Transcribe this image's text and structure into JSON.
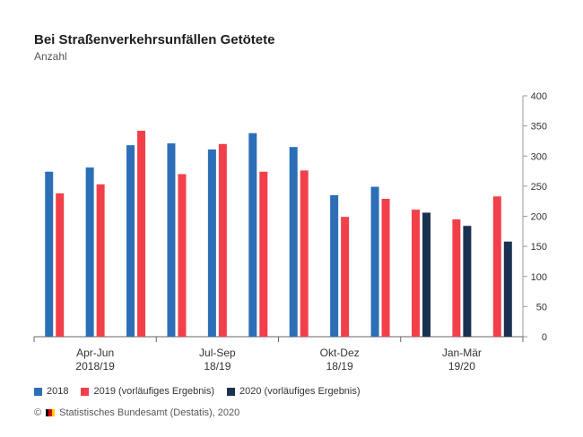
{
  "header": {
    "title": "Bei Straßenverkehrsunfällen Getötete",
    "subtitle": "Anzahl"
  },
  "source": {
    "copyright": "©",
    "text": "Statistisches Bundesamt (Destatis), 2020"
  },
  "colors": {
    "2018": "#2c6fb7",
    "2019": "#f2404b",
    "2020": "#1b3150",
    "axis": "#666666",
    "grid_tick": "#999999"
  },
  "chart_data": {
    "type": "bar",
    "y_axis_side": "right",
    "ylim": [
      0,
      400
    ],
    "yticks": [
      "0",
      "50",
      "100",
      "150",
      "200",
      "250",
      "300",
      "350",
      "400"
    ],
    "groups": [
      {
        "label_line1": "Apr-Jun",
        "label_line2": "2018/19",
        "months": [
          {
            "2018": 274,
            "2019": 238
          },
          {
            "2018": 281,
            "2019": 253
          },
          {
            "2018": 318,
            "2019": 342
          }
        ]
      },
      {
        "label_line1": "Jul-Sep",
        "label_line2": "18/19",
        "months": [
          {
            "2018": 321,
            "2019": 270
          },
          {
            "2018": 311,
            "2019": 320
          },
          {
            "2018": 338,
            "2019": 274
          }
        ]
      },
      {
        "label_line1": "Okt-Dez",
        "label_line2": "18/19",
        "months": [
          {
            "2018": 315,
            "2019": 276
          },
          {
            "2018": 235,
            "2019": 199
          },
          {
            "2018": 249,
            "2019": 229
          }
        ]
      },
      {
        "label_line1": "Jan-Mär",
        "label_line2": "19/20",
        "months": [
          {
            "2019": 211,
            "2020": 206
          },
          {
            "2019": 195,
            "2020": 184
          },
          {
            "2019": 233,
            "2020": 158
          }
        ]
      }
    ],
    "legend": [
      {
        "key": "2018",
        "label": "2018"
      },
      {
        "key": "2019",
        "label": "2019 (vorläufiges Ergebnis)"
      },
      {
        "key": "2020",
        "label": "2020 (vorläufiges Ergebnis)"
      }
    ],
    "grid": false
  }
}
